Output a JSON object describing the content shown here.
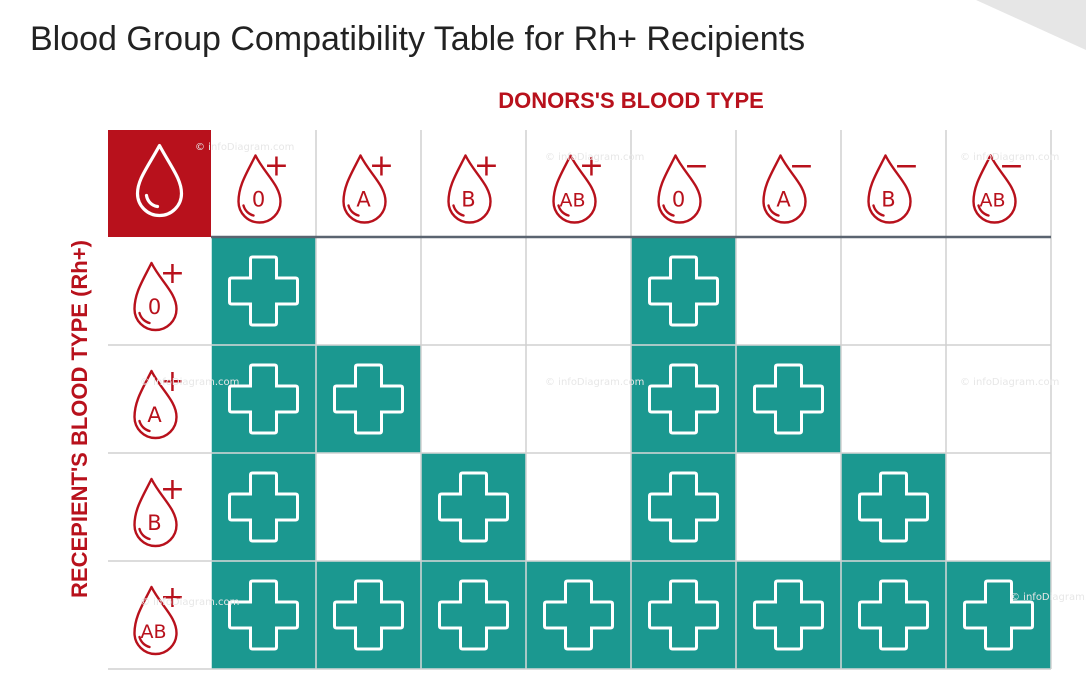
{
  "title": "Blood Group Compatibility Table for Rh+ Recipients",
  "donor_axis_label": "DONORS'S BLOOD TYPE",
  "recipient_axis_label": "RECEPIENT'S BLOOD TYPE (Rh+)",
  "header_icon": "blood-drop-icon",
  "donors": [
    {
      "group": "0",
      "rh": "+"
    },
    {
      "group": "A",
      "rh": "+"
    },
    {
      "group": "B",
      "rh": "+"
    },
    {
      "group": "AB",
      "rh": "+"
    },
    {
      "group": "0",
      "rh": "−"
    },
    {
      "group": "A",
      "rh": "−"
    },
    {
      "group": "B",
      "rh": "−"
    },
    {
      "group": "AB",
      "rh": "−"
    }
  ],
  "recipients": [
    {
      "group": "0",
      "rh": "+"
    },
    {
      "group": "A",
      "rh": "+"
    },
    {
      "group": "B",
      "rh": "+"
    },
    {
      "group": "AB",
      "rh": "+"
    }
  ],
  "compatibility": [
    [
      1,
      0,
      0,
      0,
      1,
      0,
      0,
      0
    ],
    [
      1,
      1,
      0,
      0,
      1,
      1,
      0,
      0
    ],
    [
      1,
      0,
      1,
      0,
      1,
      0,
      1,
      0
    ],
    [
      1,
      1,
      1,
      1,
      1,
      1,
      1,
      1
    ]
  ],
  "compatible_icon": "plus-icon",
  "watermark": "© infoDiagram.com",
  "colors": {
    "accent_red": "#b8111c",
    "teal": "#1b9890",
    "grid": "#d0d0d0",
    "header_line": "#5a6470"
  }
}
